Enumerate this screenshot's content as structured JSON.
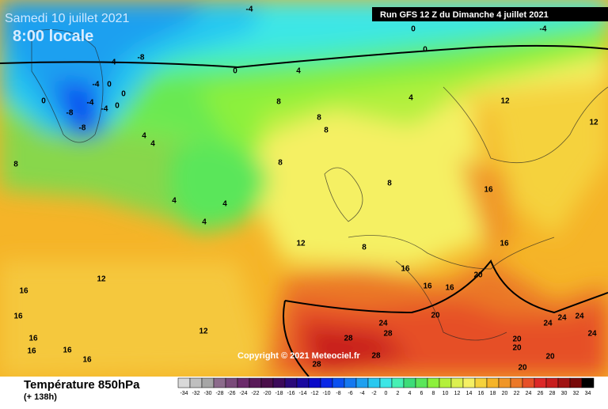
{
  "header": {
    "date": "Samedi 10 juillet 2021",
    "time": "8:00 locale",
    "run": "Run GFS 12 Z du Dimanche 4 juillet 2021"
  },
  "copyright": "Copyright © 2021 Meteociel.fr",
  "footer": {
    "title": "Température 850hPa",
    "lead": "(+ 138h)"
  },
  "colorbar": {
    "ticks": [
      -34,
      -32,
      -30,
      -28,
      -26,
      -24,
      -22,
      -20,
      -18,
      -16,
      -14,
      -12,
      -10,
      -8,
      -6,
      -4,
      -2,
      0,
      2,
      4,
      6,
      8,
      10,
      12,
      14,
      16,
      18,
      20,
      22,
      24,
      26,
      28,
      30,
      32,
      34
    ],
    "colors": [
      "#d9d9d9",
      "#bfbfbf",
      "#a6a6a6",
      "#8c6b8c",
      "#7a4a7a",
      "#6b2b6b",
      "#5a1a5a",
      "#4b0f4b",
      "#3c0a5a",
      "#2a0a7a",
      "#1a0aa0",
      "#0a0ac8",
      "#0a28e6",
      "#0a50f0",
      "#1478f0",
      "#1ea0f0",
      "#28c8f0",
      "#3ce6e6",
      "#46f0b4",
      "#3cdc78",
      "#5ae65a",
      "#8cf03c",
      "#b4f03c",
      "#dcf050",
      "#f5f064",
      "#f5d23c",
      "#f5b428",
      "#f09628",
      "#eb7828",
      "#e65028",
      "#dc2828",
      "#c81e1e",
      "#a01414",
      "#780a0a",
      "#000000"
    ]
  },
  "contour_labels": [
    -4,
    -4,
    0,
    0,
    0,
    4,
    4,
    -4,
    -8,
    -4,
    -4,
    0,
    0,
    0,
    -4,
    -8,
    -8,
    0,
    4,
    4,
    8,
    8,
    8,
    8,
    8,
    8,
    8,
    4,
    4,
    4,
    12,
    12,
    12,
    12,
    12,
    16,
    16,
    16,
    16,
    16,
    16,
    16,
    16,
    16,
    16,
    16,
    20,
    20,
    20,
    20,
    20,
    20,
    24,
    24,
    24,
    24,
    24,
    28,
    28,
    28,
    28
  ]
}
